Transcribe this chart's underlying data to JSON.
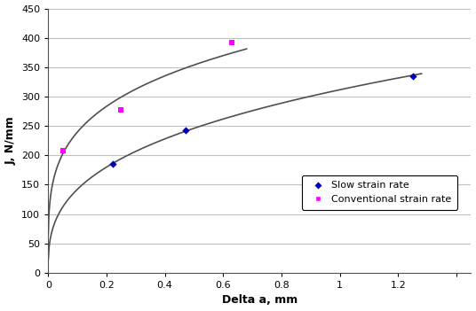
{
  "title": "",
  "xlabel": "Delta a, mm",
  "ylabel": "J, N/mm",
  "xlim": [
    0,
    1.45
  ],
  "ylim": [
    0,
    450
  ],
  "xticks": [
    0,
    0.2,
    0.4,
    0.6,
    0.8,
    1.0,
    1.2,
    1.4
  ],
  "xticklabels": [
    "0",
    "0.2",
    "0.4",
    "0.6",
    "0.8",
    "1",
    "1.2",
    ""
  ],
  "yticks": [
    0,
    50,
    100,
    150,
    200,
    250,
    300,
    350,
    400,
    450
  ],
  "slow_points_x": [
    0.22,
    0.47,
    1.25
  ],
  "slow_points_y": [
    185,
    243,
    335
  ],
  "conv_points_x": [
    0.05,
    0.25,
    0.63
  ],
  "conv_points_y": [
    208,
    278,
    392
  ],
  "slow_curve_color": "#505050",
  "conv_curve_color": "#505050",
  "slow_marker_color": "#0000bb",
  "conv_marker_color": "#ff00ff",
  "background_color": "#ffffff",
  "grid_color": "#c0c0c0",
  "legend_labels": [
    "Slow strain rate",
    "Conventional strain rate"
  ],
  "font_size": 9,
  "axis_label_fontsize": 9
}
